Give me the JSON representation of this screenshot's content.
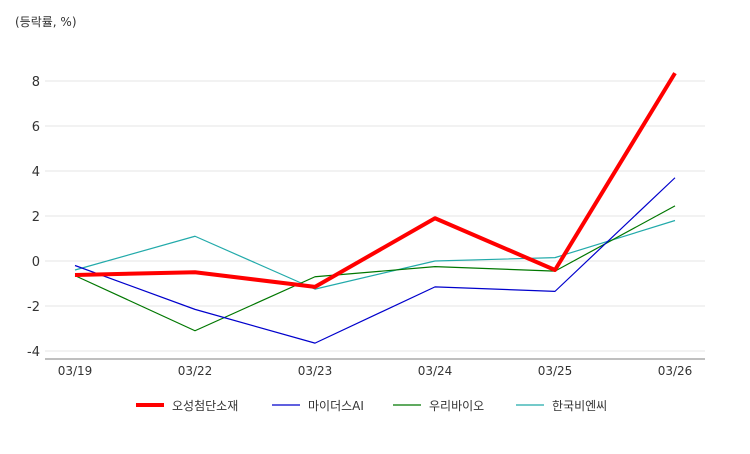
{
  "chart_data": {
    "type": "line",
    "unit_label": "(등락률, %)",
    "categories": [
      "03/19",
      "03/22",
      "03/23",
      "03/24",
      "03/25",
      "03/26"
    ],
    "yticks": [
      -4,
      -2,
      0,
      2,
      4,
      6,
      8
    ],
    "ylim": [
      -4.4,
      8.8
    ],
    "grid": true,
    "legend_position": "bottom",
    "series": [
      {
        "name": "오성첨단소재",
        "color": "#ff0000",
        "width": 4,
        "values": [
          -0.62,
          -0.5,
          -1.15,
          1.9,
          -0.4,
          8.35
        ]
      },
      {
        "name": "마이더스AI",
        "color": "#0000cc",
        "width": 1.2,
        "values": [
          -0.2,
          -2.15,
          -3.65,
          -1.15,
          -1.35,
          3.7
        ]
      },
      {
        "name": "우리바이오",
        "color": "#007700",
        "width": 1.2,
        "values": [
          -0.65,
          -3.1,
          -0.7,
          -0.25,
          -0.45,
          2.45
        ]
      },
      {
        "name": "한국비엔씨",
        "color": "#22aaaa",
        "width": 1.2,
        "values": [
          -0.4,
          1.1,
          -1.25,
          0.0,
          0.15,
          1.8
        ]
      }
    ]
  }
}
